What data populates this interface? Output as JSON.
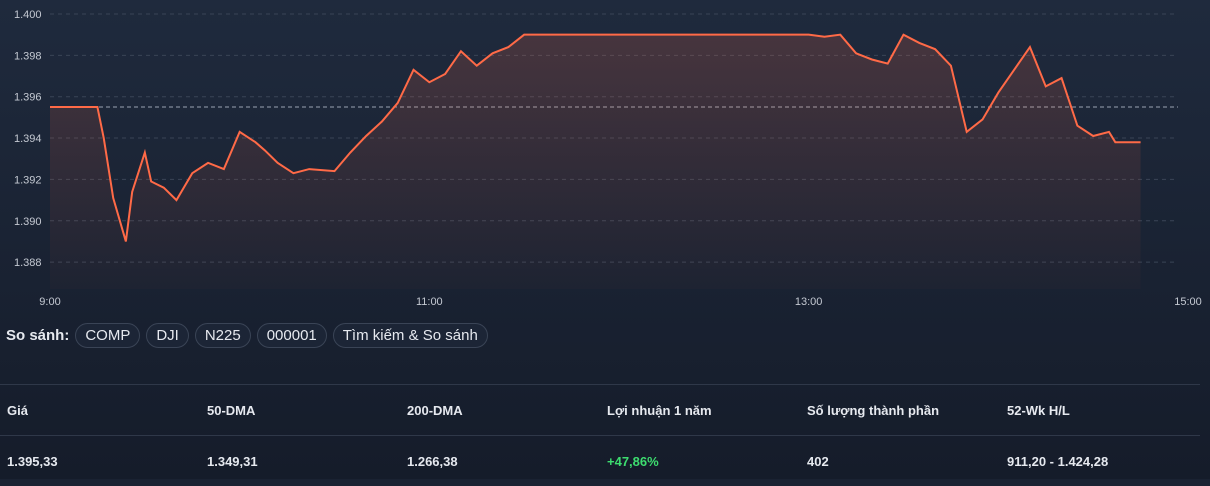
{
  "chart_data": {
    "type": "line",
    "x": [
      "9:00",
      "9:15",
      "9:17",
      "9:20",
      "9:24",
      "9:26",
      "9:30",
      "9:32",
      "9:36",
      "9:40",
      "9:45",
      "9:50",
      "9:55",
      "10:00",
      "10:05",
      "10:08",
      "10:12",
      "10:17",
      "10:22",
      "10:30",
      "10:35",
      "10:40",
      "10:45",
      "10:50",
      "10:55",
      "11:00",
      "11:05",
      "11:10",
      "11:15",
      "11:20",
      "11:25",
      "11:30",
      "13:00",
      "13:05",
      "13:10",
      "13:15",
      "13:20",
      "13:25",
      "13:30",
      "13:35",
      "13:40",
      "13:45",
      "13:50",
      "13:55",
      "14:00",
      "14:05",
      "14:10",
      "14:15",
      "14:20",
      "14:25",
      "14:30",
      "14:35",
      "14:37",
      "14:45"
    ],
    "series": [
      {
        "name": "Index",
        "color": "#ff6a47",
        "values": [
          1.3955,
          1.3955,
          1.394,
          1.3911,
          1.389,
          1.3914,
          1.3933,
          1.3919,
          1.3916,
          1.391,
          1.3923,
          1.3928,
          1.3925,
          1.3943,
          1.3938,
          1.3934,
          1.3928,
          1.3923,
          1.3925,
          1.3924,
          1.3933,
          1.3941,
          1.3948,
          1.3957,
          1.3973,
          1.3967,
          1.3971,
          1.3982,
          1.3975,
          1.3981,
          1.3984,
          1.399,
          1.399,
          1.3989,
          1.399,
          1.3981,
          1.3978,
          1.3976,
          1.399,
          1.3986,
          1.3983,
          1.3975,
          1.3943,
          1.3949,
          1.3962,
          1.3973,
          1.3984,
          1.3965,
          1.3969,
          1.3946,
          1.3941,
          1.3943,
          1.3938,
          1.3938
        ]
      }
    ],
    "reference": 1.3955,
    "xlim": [
      "9:00",
      "15:00"
    ],
    "xticks": [
      "9:00",
      "11:00",
      "13:00",
      "15:00"
    ],
    "ylim": [
      1.3867,
      1.4
    ],
    "yticks": [
      {
        "value": 1.4,
        "label": "1.400"
      },
      {
        "value": 1.398,
        "label": "1.398"
      },
      {
        "value": 1.396,
        "label": "1.396"
      },
      {
        "value": 1.394,
        "label": "1.394"
      },
      {
        "value": 1.392,
        "label": "1.392"
      },
      {
        "value": 1.39,
        "label": "1.390"
      },
      {
        "value": 1.388,
        "label": "1.388"
      }
    ],
    "grid": true
  },
  "compare": {
    "label": "So sánh:",
    "chips": [
      "COMP",
      "DJI",
      "N225",
      "000001"
    ],
    "search": "Tìm kiếm & So sánh"
  },
  "stats": {
    "headers": [
      "Giá",
      "50-DMA",
      "200-DMA",
      "Lợi nhuận 1 năm",
      "Số lượng thành phần",
      "52-Wk H/L"
    ],
    "values": [
      "1.395,33",
      "1.349,31",
      "1.266,38",
      "+47,86%",
      "402",
      "911,20 - 1.424,28"
    ]
  }
}
